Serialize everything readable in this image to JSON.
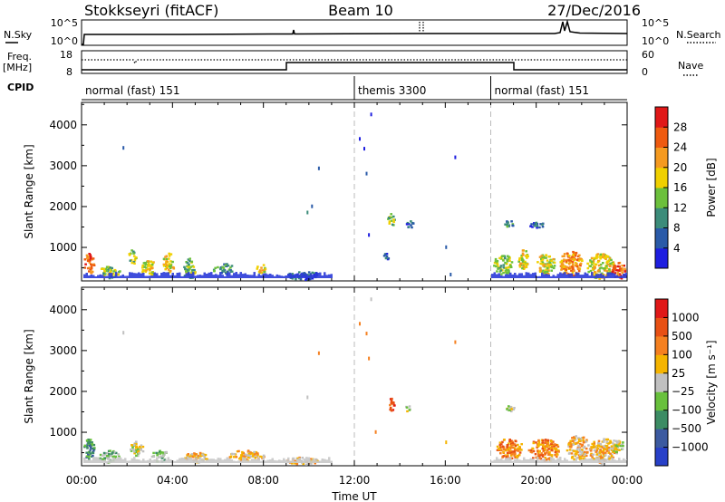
{
  "header": {
    "station": "Stokkseyri (fitACF)",
    "beam": "Beam 10",
    "date": "27/Dec/2016"
  },
  "status_panels": {
    "nsky_label": "N.Sky",
    "nsky_ticks": [
      "10^5",
      "10^0"
    ],
    "nsearch_label": "N.Search",
    "nsearch_ticks": [
      "10^5",
      "10^0"
    ],
    "freq_label": "Freq.",
    "freq_unit": "[MHz]",
    "freq_ticks": [
      "18",
      "8"
    ],
    "nave_label": "Nave",
    "nave_ticks": [
      "60",
      "0"
    ],
    "cpid_label": "CPID",
    "cpid_segments": [
      {
        "label": "normal (fast) 151",
        "start_h": 0,
        "end_h": 12
      },
      {
        "label": "themis 3300",
        "start_h": 12,
        "end_h": 18
      },
      {
        "label": "normal (fast) 151",
        "start_h": 18,
        "end_h": 24
      }
    ]
  },
  "chart_data": [
    {
      "type": "heatmap",
      "title": "",
      "xlabel": "",
      "ylabel": "Slant Range [km]",
      "x_range_hours": [
        0,
        24
      ],
      "ylim": [
        180,
        4550
      ],
      "yticks": [
        "1000",
        "2000",
        "3000",
        "4000"
      ],
      "colorbar": {
        "label": "Power [dB]",
        "ticks": [
          "4",
          "8",
          "12",
          "16",
          "20",
          "24",
          "28"
        ],
        "colors": [
          "#1e1ee0",
          "#2a5aa8",
          "#3c8c7a",
          "#6cc03c",
          "#f0d000",
          "#f59a20",
          "#ee5a10",
          "#e01818"
        ]
      },
      "scatter_blobs": [
        {
          "t_h": 0.3,
          "range_km": 620,
          "dt_h": 0.45,
          "dr_km": 500,
          "level": 6
        },
        {
          "t_h": 1.2,
          "range_km": 420,
          "dt_h": 0.9,
          "dr_km": 300,
          "level": 3
        },
        {
          "t_h": 2.2,
          "range_km": 780,
          "dt_h": 0.35,
          "dr_km": 360,
          "level": 3
        },
        {
          "t_h": 2.9,
          "range_km": 520,
          "dt_h": 0.6,
          "dr_km": 420,
          "level": 4
        },
        {
          "t_h": 3.8,
          "range_km": 640,
          "dt_h": 0.5,
          "dr_km": 480,
          "level": 4
        },
        {
          "t_h": 4.7,
          "range_km": 500,
          "dt_h": 0.55,
          "dr_km": 500,
          "level": 3
        },
        {
          "t_h": 6.2,
          "range_km": 500,
          "dt_h": 0.9,
          "dr_km": 280,
          "level": 2
        },
        {
          "t_h": 7.9,
          "range_km": 500,
          "dt_h": 0.5,
          "dr_km": 200,
          "level": 4
        },
        {
          "t_h": 9.7,
          "range_km": 330,
          "dt_h": 1.6,
          "dr_km": 200,
          "level": 1
        },
        {
          "t_h": 13.6,
          "range_km": 1700,
          "dt_h": 0.35,
          "dr_km": 300,
          "level": 3
        },
        {
          "t_h": 14.4,
          "range_km": 1580,
          "dt_h": 0.35,
          "dr_km": 200,
          "level": 1
        },
        {
          "t_h": 13.4,
          "range_km": 800,
          "dt_h": 0.3,
          "dr_km": 200,
          "level": 1
        },
        {
          "t_h": 18.8,
          "range_km": 1600,
          "dt_h": 0.45,
          "dr_km": 160,
          "level": 2
        },
        {
          "t_h": 20.0,
          "range_km": 1560,
          "dt_h": 0.7,
          "dr_km": 140,
          "level": 1
        },
        {
          "t_h": 18.5,
          "range_km": 600,
          "dt_h": 0.8,
          "dr_km": 500,
          "level": 3
        },
        {
          "t_h": 19.4,
          "range_km": 720,
          "dt_h": 0.5,
          "dr_km": 500,
          "level": 4
        },
        {
          "t_h": 20.4,
          "range_km": 620,
          "dt_h": 0.8,
          "dr_km": 520,
          "level": 4
        },
        {
          "t_h": 21.5,
          "range_km": 620,
          "dt_h": 1.0,
          "dr_km": 620,
          "level": 5
        },
        {
          "t_h": 22.8,
          "range_km": 560,
          "dt_h": 1.2,
          "dr_km": 620,
          "level": 4
        },
        {
          "t_h": 23.6,
          "range_km": 450,
          "dt_h": 0.6,
          "dr_km": 420,
          "level": 6
        }
      ],
      "isolated_points": [
        {
          "t_h": 1.8,
          "range_km": 3480,
          "level": 1
        },
        {
          "t_h": 10.4,
          "range_km": 2980,
          "level": 1
        },
        {
          "t_h": 9.9,
          "range_km": 1900,
          "level": 2
        },
        {
          "t_h": 10.1,
          "range_km": 2050,
          "level": 1
        },
        {
          "t_h": 12.2,
          "range_km": 3700,
          "level": 0
        },
        {
          "t_h": 12.4,
          "range_km": 3460,
          "level": 0
        },
        {
          "t_h": 12.7,
          "range_km": 4300,
          "level": 0
        },
        {
          "t_h": 12.5,
          "range_km": 2850,
          "level": 1
        },
        {
          "t_h": 16.4,
          "range_km": 3250,
          "level": 0
        },
        {
          "t_h": 12.6,
          "range_km": 1350,
          "level": 0
        },
        {
          "t_h": 16.2,
          "range_km": 380,
          "level": 1
        },
        {
          "t_h": 16.0,
          "range_km": 1050,
          "level": 1
        }
      ]
    },
    {
      "type": "heatmap",
      "title": "",
      "xlabel": "Time UT",
      "ylabel": "Slant Range [km]",
      "x_range_hours": [
        0,
        24
      ],
      "xticks": [
        "00:00",
        "04:00",
        "08:00",
        "12:00",
        "16:00",
        "20:00",
        "00:00"
      ],
      "ylim": [
        180,
        4550
      ],
      "yticks": [
        "1000",
        "2000",
        "3000",
        "4000"
      ],
      "colorbar": {
        "label": "Velocity [m s⁻¹]",
        "ticks": [
          "1000",
          "500",
          "100",
          "25",
          "−25",
          "−100",
          "−500",
          "−1000"
        ],
        "colors": [
          "#2840c8",
          "#3c5aa0",
          "#3c8c64",
          "#68c03c",
          "#c0c0c0",
          "#f5b400",
          "#f58020",
          "#e85014",
          "#e01818"
        ]
      },
      "scatter_blobs": [
        {
          "t_h": 0.3,
          "range_km": 620,
          "dt_h": 0.45,
          "dr_km": 520,
          "level": 2
        },
        {
          "t_h": 1.2,
          "range_km": 420,
          "dt_h": 0.9,
          "dr_km": 300,
          "level": 3
        },
        {
          "t_h": 2.4,
          "range_km": 600,
          "dt_h": 0.6,
          "dr_km": 400,
          "level": 4
        },
        {
          "t_h": 3.4,
          "range_km": 450,
          "dt_h": 0.7,
          "dr_km": 300,
          "level": 3
        },
        {
          "t_h": 5.0,
          "range_km": 400,
          "dt_h": 1.0,
          "dr_km": 260,
          "level": 5
        },
        {
          "t_h": 7.2,
          "range_km": 450,
          "dt_h": 1.6,
          "dr_km": 260,
          "level": 5
        },
        {
          "t_h": 9.7,
          "range_km": 320,
          "dt_h": 1.4,
          "dr_km": 180,
          "level": 5
        },
        {
          "t_h": 13.6,
          "range_km": 1700,
          "dt_h": 0.3,
          "dr_km": 300,
          "level": 7
        },
        {
          "t_h": 14.3,
          "range_km": 1600,
          "dt_h": 0.3,
          "dr_km": 160,
          "level": 4
        },
        {
          "t_h": 18.8,
          "range_km": 1600,
          "dt_h": 0.4,
          "dr_km": 150,
          "level": 4
        },
        {
          "t_h": 18.8,
          "range_km": 620,
          "dt_h": 1.2,
          "dr_km": 500,
          "level": 6
        },
        {
          "t_h": 20.3,
          "range_km": 580,
          "dt_h": 1.4,
          "dr_km": 560,
          "level": 6
        },
        {
          "t_h": 21.8,
          "range_km": 640,
          "dt_h": 1.0,
          "dr_km": 600,
          "level": 5
        },
        {
          "t_h": 22.9,
          "range_km": 560,
          "dt_h": 1.2,
          "dr_km": 620,
          "level": 5
        },
        {
          "t_h": 23.5,
          "range_km": 700,
          "dt_h": 0.6,
          "dr_km": 400,
          "level": 4
        }
      ],
      "isolated_points": [
        {
          "t_h": 1.8,
          "range_km": 3480,
          "level": 4
        },
        {
          "t_h": 10.4,
          "range_km": 2980,
          "level": 6
        },
        {
          "t_h": 9.9,
          "range_km": 1900,
          "level": 4
        },
        {
          "t_h": 12.2,
          "range_km": 3700,
          "level": 6
        },
        {
          "t_h": 12.5,
          "range_km": 3460,
          "level": 6
        },
        {
          "t_h": 12.6,
          "range_km": 2850,
          "level": 6
        },
        {
          "t_h": 12.7,
          "range_km": 4300,
          "level": 4
        },
        {
          "t_h": 16.4,
          "range_km": 3250,
          "level": 6
        },
        {
          "t_h": 12.9,
          "range_km": 1050,
          "level": 6
        },
        {
          "t_h": 16.0,
          "range_km": 800,
          "level": 5
        }
      ]
    }
  ]
}
